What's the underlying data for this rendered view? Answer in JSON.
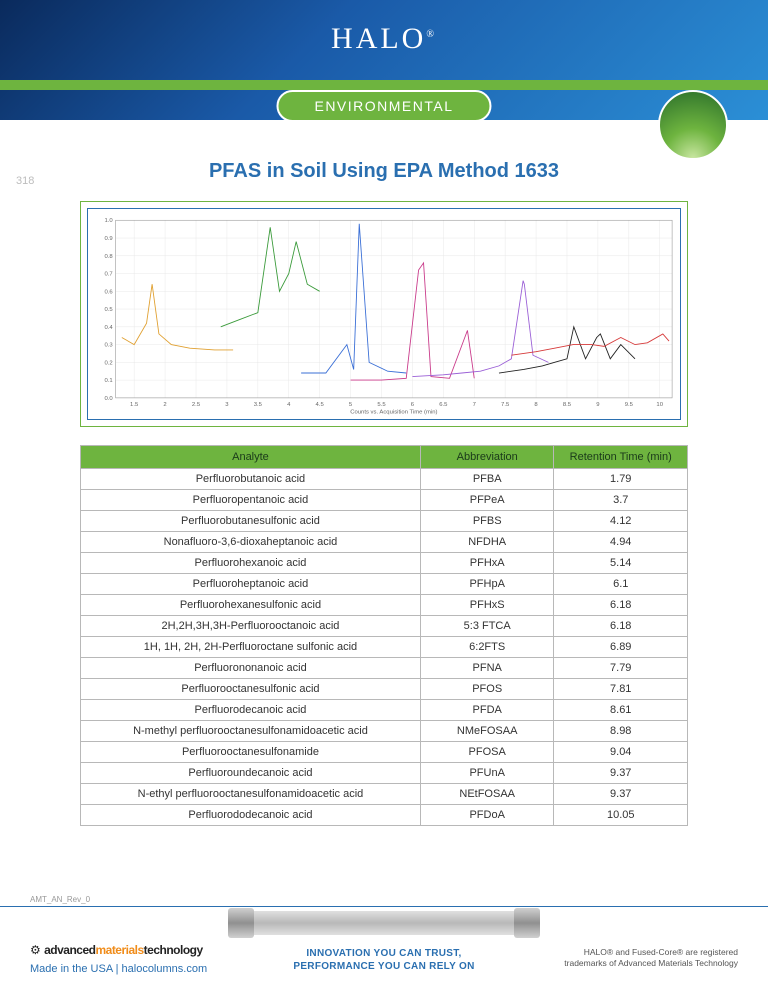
{
  "brand": {
    "name": "HALO",
    "reg": "®"
  },
  "pill": "ENVIRONMENTAL",
  "title": "PFAS in Soil Using EPA Method 1633",
  "docnum": "318",
  "rev": "AMT_AN_Rev_0",
  "chart": {
    "xlim": [
      1.2,
      10.2
    ],
    "ylim": [
      0,
      1.0
    ],
    "xlabel": "Counts vs. Acquisition Time (min)",
    "x_ticks": [
      1.5,
      2,
      2.5,
      3,
      3.5,
      4,
      4.5,
      5,
      5.5,
      6,
      6.5,
      7,
      7.5,
      8,
      8.5,
      9,
      9.5,
      10
    ],
    "background_color": "#ffffff",
    "grid_color": "#e8e8e8",
    "axis_fontsize": 6,
    "series": [
      {
        "color": "#e0a030",
        "stroke_width": 0.9,
        "points": [
          [
            1.3,
            0.34
          ],
          [
            1.5,
            0.3
          ],
          [
            1.7,
            0.42
          ],
          [
            1.79,
            0.64
          ],
          [
            1.9,
            0.36
          ],
          [
            2.1,
            0.3
          ],
          [
            2.4,
            0.28
          ],
          [
            2.8,
            0.27
          ],
          [
            3.1,
            0.27
          ]
        ]
      },
      {
        "color": "#3a9a3a",
        "stroke_width": 0.9,
        "points": [
          [
            2.9,
            0.4
          ],
          [
            3.2,
            0.44
          ],
          [
            3.5,
            0.48
          ],
          [
            3.7,
            0.96
          ],
          [
            3.85,
            0.6
          ],
          [
            4.0,
            0.7
          ],
          [
            4.12,
            0.88
          ],
          [
            4.3,
            0.64
          ],
          [
            4.5,
            0.6
          ]
        ]
      },
      {
        "color": "#3a6fd6",
        "stroke_width": 0.9,
        "points": [
          [
            4.2,
            0.14
          ],
          [
            4.6,
            0.14
          ],
          [
            4.94,
            0.3
          ],
          [
            5.05,
            0.16
          ],
          [
            5.14,
            0.98
          ],
          [
            5.3,
            0.2
          ],
          [
            5.6,
            0.15
          ],
          [
            5.9,
            0.14
          ]
        ]
      },
      {
        "color": "#c93a8a",
        "stroke_width": 0.9,
        "points": [
          [
            5.0,
            0.1
          ],
          [
            5.5,
            0.1
          ],
          [
            5.9,
            0.11
          ],
          [
            6.1,
            0.72
          ],
          [
            6.18,
            0.76
          ],
          [
            6.3,
            0.12
          ],
          [
            6.6,
            0.11
          ],
          [
            6.89,
            0.38
          ],
          [
            7.0,
            0.11
          ]
        ]
      },
      {
        "color": "#9a5fd6",
        "stroke_width": 0.9,
        "points": [
          [
            6.0,
            0.12
          ],
          [
            6.5,
            0.13
          ],
          [
            6.8,
            0.14
          ],
          [
            7.1,
            0.15
          ],
          [
            7.4,
            0.18
          ],
          [
            7.6,
            0.22
          ],
          [
            7.79,
            0.66
          ],
          [
            7.81,
            0.64
          ],
          [
            7.95,
            0.24
          ],
          [
            8.2,
            0.2
          ]
        ]
      },
      {
        "color": "#222222",
        "stroke_width": 0.9,
        "points": [
          [
            7.4,
            0.14
          ],
          [
            7.8,
            0.16
          ],
          [
            8.1,
            0.18
          ],
          [
            8.3,
            0.2
          ],
          [
            8.5,
            0.22
          ],
          [
            8.61,
            0.4
          ],
          [
            8.8,
            0.22
          ],
          [
            8.98,
            0.34
          ],
          [
            9.04,
            0.36
          ],
          [
            9.2,
            0.22
          ],
          [
            9.37,
            0.3
          ],
          [
            9.6,
            0.22
          ]
        ]
      },
      {
        "color": "#d63a3a",
        "stroke_width": 0.9,
        "points": [
          [
            7.6,
            0.24
          ],
          [
            8.0,
            0.26
          ],
          [
            8.3,
            0.28
          ],
          [
            8.6,
            0.3
          ],
          [
            8.9,
            0.3
          ],
          [
            9.1,
            0.29
          ],
          [
            9.37,
            0.34
          ],
          [
            9.6,
            0.3
          ],
          [
            9.8,
            0.31
          ],
          [
            10.05,
            0.36
          ],
          [
            10.15,
            0.32
          ]
        ]
      }
    ]
  },
  "table": {
    "headers": [
      "Analyte",
      "Abbreviation",
      "Retention Time (min)"
    ],
    "col_widths": [
      "56%",
      "22%",
      "22%"
    ],
    "header_bg": "#6eb43f",
    "rows": [
      [
        "Perfluorobutanoic acid",
        "PFBA",
        "1.79"
      ],
      [
        "Perfluoropentanoic acid",
        "PFPeA",
        "3.7"
      ],
      [
        "Perfluorobutanesulfonic acid",
        "PFBS",
        "4.12"
      ],
      [
        "Nonafluoro-3,6-dioxaheptanoic acid",
        "NFDHA",
        "4.94"
      ],
      [
        "Perfluorohexanoic acid",
        "PFHxA",
        "5.14"
      ],
      [
        "Perfluoroheptanoic acid",
        "PFHpA",
        "6.1"
      ],
      [
        "Perfluorohexanesulfonic acid",
        "PFHxS",
        "6.18"
      ],
      [
        "2H,2H,3H,3H-Perfluorooctanoic acid",
        "5:3 FTCA",
        "6.18"
      ],
      [
        "1H, 1H, 2H, 2H-Perfluoroctane sulfonic acid",
        "6:2FTS",
        "6.89"
      ],
      [
        "Perfluorononanoic acid",
        "PFNA",
        "7.79"
      ],
      [
        "Perfluorooctanesulfonic acid",
        "PFOS",
        "7.81"
      ],
      [
        "Perfluorodecanoic acid",
        "PFDA",
        "8.61"
      ],
      [
        "N-methyl perfluorooctanesulfonamidoacetic acid",
        "NMeFOSAA",
        "8.98"
      ],
      [
        "Perfluorooctanesulfonamide",
        "PFOSA",
        "9.04"
      ],
      [
        "Perfluoroundecanoic acid",
        "PFUnA",
        "9.37"
      ],
      [
        "N-ethyl perfluorooctanesulfonamidoacetic acid",
        "NEtFOSAA",
        "9.37"
      ],
      [
        "Perfluorododecanoic acid",
        "PFDoA",
        "10.05"
      ]
    ]
  },
  "footer": {
    "amt": {
      "p1": "advanced",
      "p2": "materials",
      "p3": "technology"
    },
    "made": "Made in the USA |  halocolumns.com",
    "tag1": "INNOVATION YOU CAN TRUST,",
    "tag2": "PERFORMANCE YOU CAN RELY ON",
    "tm1": "HALO® and Fused-Core® are registered",
    "tm2": "trademarks of Advanced Materials Technology"
  }
}
